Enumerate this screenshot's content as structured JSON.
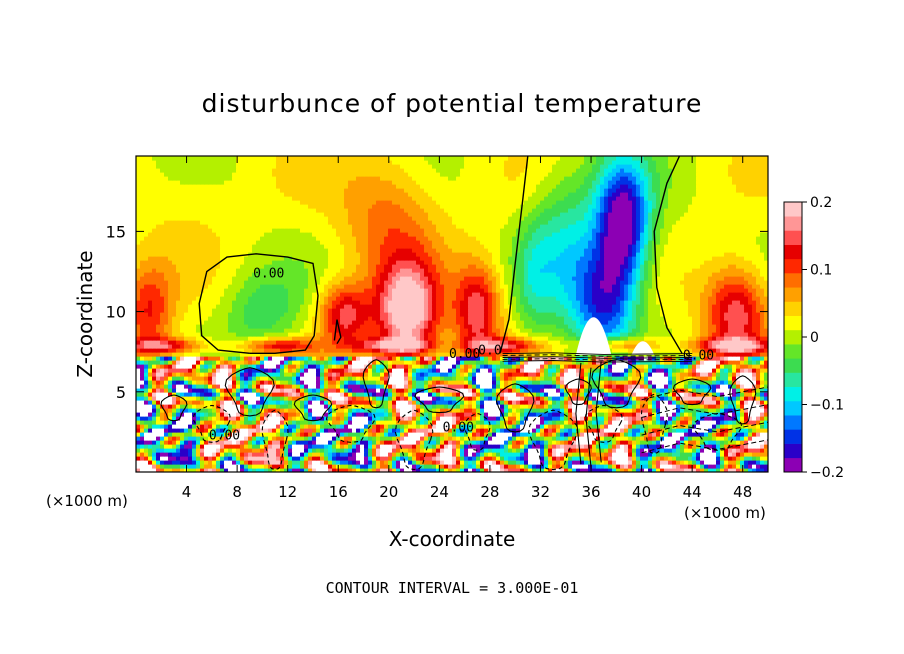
{
  "chart_data": {
    "type": "heatmap",
    "title": "disturbunce of potential temperature",
    "xlabel": "X-coordinate",
    "ylabel": "Z-coordinate",
    "x_unit_left": "(×1000 m)",
    "x_unit_right": "(×1000 m)",
    "xlim": [
      0,
      50
    ],
    "ylim": [
      0,
      19.7
    ],
    "x_ticks": [
      4,
      8,
      12,
      16,
      20,
      24,
      28,
      32,
      36,
      40,
      44,
      48
    ],
    "y_ticks": [
      5,
      10,
      15
    ],
    "colorbar": {
      "range": [
        -0.2,
        0.2
      ],
      "ticks": [
        {
          "value": 0.2,
          "label": "0.2"
        },
        {
          "value": 0.1,
          "label": "0.1"
        },
        {
          "value": 0,
          "label": "0"
        },
        {
          "value": -0.1,
          "label": "−0.1"
        },
        {
          "value": -0.2,
          "label": "−0.2"
        }
      ],
      "colors": [
        "#8c00b4",
        "#2a00c8",
        "#0032e6",
        "#0078ff",
        "#00c8ff",
        "#00f0e6",
        "#28e6a0",
        "#3cdc50",
        "#64e628",
        "#b4f000",
        "#ffff00",
        "#ffd200",
        "#ffa000",
        "#ff6e00",
        "#ff2800",
        "#e60000",
        "#ff5050",
        "#ff9696",
        "#ffc8c8"
      ]
    },
    "contour_labels": [
      {
        "text": "0.00",
        "x": 10.5,
        "z": 12.3
      },
      {
        "text": "0.00",
        "x": 7,
        "z": 2.2
      },
      {
        "text": "0.00",
        "x": 25.5,
        "z": 2.7
      },
      {
        "text": "0.00",
        "x": 26,
        "z": 7.3
      },
      {
        "text": "0.0",
        "x": 28,
        "z": 7.5
      },
      {
        "text": "0.00",
        "x": 44.5,
        "z": 7.2
      }
    ],
    "contour_interval": "CONTOUR INTERVAL = 3.000E-01",
    "field_features": [
      {
        "kind": "cold",
        "x": 38.5,
        "z": 15.5,
        "sx": 2.2,
        "sz": 4,
        "amp": -0.22
      },
      {
        "kind": "cold",
        "x": 37,
        "z": 10.5,
        "sx": 2.5,
        "sz": 3.5,
        "amp": -0.15
      },
      {
        "kind": "cold",
        "x": 34,
        "z": 14,
        "sx": 2.5,
        "sz": 5,
        "amp": -0.08
      },
      {
        "kind": "cold",
        "x": 31.5,
        "z": 12,
        "sx": 1.5,
        "sz": 4,
        "amp": -0.05
      },
      {
        "kind": "cold",
        "x": 10,
        "z": 10,
        "sx": 3,
        "sz": 2.5,
        "amp": -0.06
      },
      {
        "kind": "warm",
        "x": 21.5,
        "z": 10,
        "sx": 2.5,
        "sz": 3,
        "amp": 0.2
      },
      {
        "kind": "warm",
        "x": 27,
        "z": 10,
        "sx": 1.8,
        "sz": 3,
        "amp": 0.14
      },
      {
        "kind": "warm",
        "x": 16.5,
        "z": 9.8,
        "sx": 2,
        "sz": 2,
        "amp": 0.13
      },
      {
        "kind": "warm",
        "x": 1,
        "z": 10,
        "sx": 2,
        "sz": 3,
        "amp": 0.1
      },
      {
        "kind": "warm",
        "x": 47.5,
        "z": 10,
        "sx": 2.5,
        "sz": 3,
        "amp": 0.14
      },
      {
        "kind": "warm",
        "x": 20,
        "z": 16,
        "sx": 4,
        "sz": 4,
        "amp": 0.07
      },
      {
        "kind": "warm",
        "x": 4,
        "z": 17,
        "sx": 4,
        "sz": 3,
        "amp": 0.02
      }
    ]
  }
}
